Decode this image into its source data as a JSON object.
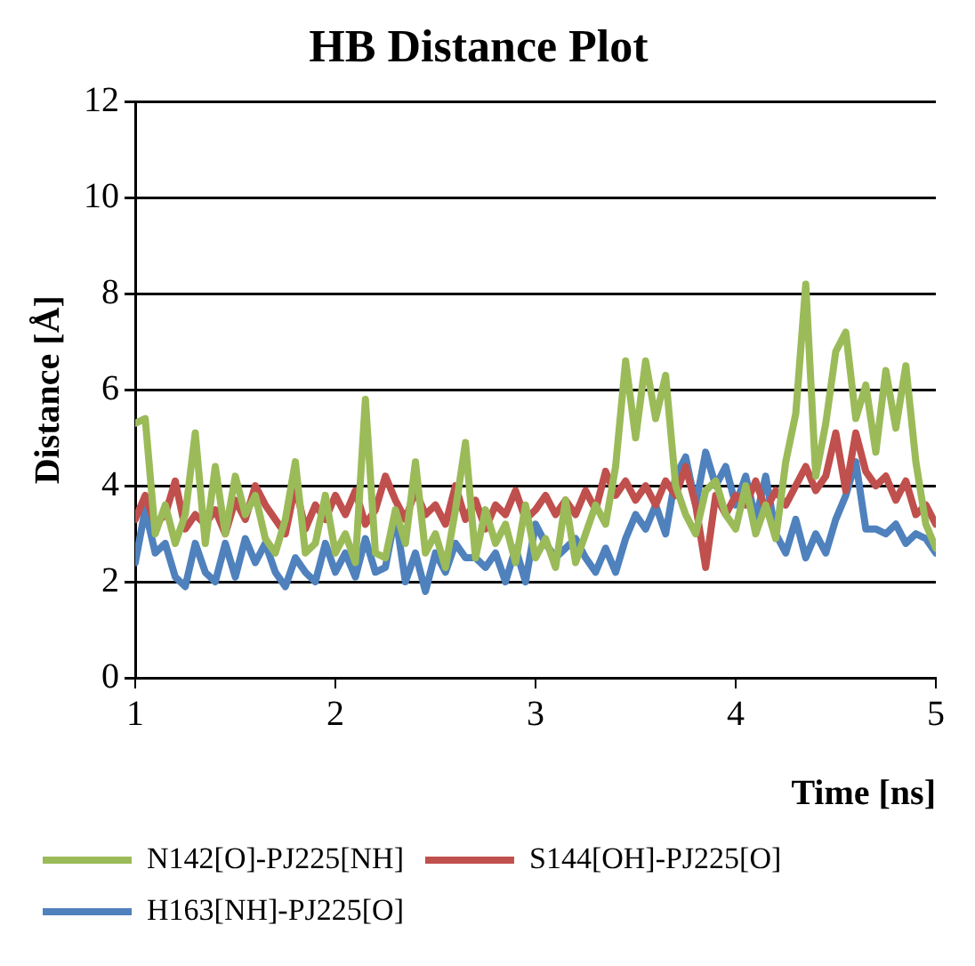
{
  "chart_data": {
    "type": "line",
    "title": "HB Distance Plot",
    "xlabel": "Time [ns]",
    "ylabel": "Distance [Å]",
    "x": [
      1.0,
      1.05,
      1.1,
      1.15,
      1.2,
      1.25,
      1.3,
      1.35,
      1.4,
      1.45,
      1.5,
      1.55,
      1.6,
      1.65,
      1.7,
      1.75,
      1.8,
      1.85,
      1.9,
      1.95,
      2.0,
      2.05,
      2.1,
      2.15,
      2.2,
      2.25,
      2.3,
      2.35,
      2.4,
      2.45,
      2.5,
      2.55,
      2.6,
      2.65,
      2.7,
      2.75,
      2.8,
      2.85,
      2.9,
      2.95,
      3.0,
      3.05,
      3.1,
      3.15,
      3.2,
      3.25,
      3.3,
      3.35,
      3.4,
      3.45,
      3.5,
      3.55,
      3.6,
      3.65,
      3.7,
      3.75,
      3.8,
      3.85,
      3.9,
      3.95,
      4.0,
      4.05,
      4.1,
      4.15,
      4.2,
      4.25,
      4.3,
      4.35,
      4.4,
      4.45,
      4.5,
      4.55,
      4.6,
      4.65,
      4.7,
      4.75,
      4.8,
      4.85,
      4.9,
      4.95,
      5.0
    ],
    "series": [
      {
        "name": "N142[O]-PJ225[NH]",
        "color": "#9bbb59",
        "values": [
          5.3,
          5.4,
          3.0,
          3.6,
          2.8,
          3.4,
          5.1,
          2.8,
          4.4,
          3.0,
          4.2,
          3.4,
          3.8,
          2.9,
          2.6,
          3.3,
          4.5,
          2.6,
          2.8,
          3.8,
          2.6,
          3.0,
          2.4,
          5.8,
          2.6,
          2.5,
          3.5,
          2.8,
          4.5,
          2.6,
          3.0,
          2.3,
          3.5,
          4.9,
          2.5,
          3.5,
          2.8,
          3.2,
          2.4,
          3.6,
          2.5,
          2.9,
          2.3,
          3.7,
          2.4,
          3.0,
          3.6,
          3.2,
          4.4,
          6.6,
          5.0,
          6.6,
          5.4,
          6.3,
          4.0,
          3.4,
          3.0,
          3.9,
          4.1,
          3.4,
          3.1,
          4.0,
          3.0,
          3.6,
          2.9,
          4.5,
          5.5,
          8.2,
          4.2,
          5.3,
          6.8,
          7.2,
          5.4,
          6.1,
          4.7,
          6.4,
          5.2,
          6.5,
          4.5,
          3.2,
          2.7
        ]
      },
      {
        "name": "S144[OH]-PJ225[O]",
        "color": "#c0504d",
        "values": [
          3.3,
          3.8,
          3.2,
          3.4,
          4.1,
          3.1,
          3.4,
          3.2,
          3.5,
          3.0,
          3.7,
          3.3,
          4.0,
          3.6,
          3.3,
          3.0,
          4.0,
          3.1,
          3.6,
          3.3,
          3.8,
          3.4,
          3.9,
          3.2,
          3.5,
          4.2,
          3.7,
          3.3,
          3.9,
          3.4,
          3.6,
          3.2,
          4.0,
          3.3,
          3.7,
          3.1,
          3.6,
          3.4,
          3.9,
          3.3,
          3.5,
          3.8,
          3.4,
          3.7,
          3.4,
          3.9,
          3.5,
          4.3,
          3.8,
          4.1,
          3.7,
          4.0,
          3.6,
          4.1,
          3.8,
          4.4,
          3.6,
          2.3,
          3.8,
          3.4,
          3.8,
          3.6,
          4.1,
          3.5,
          3.9,
          3.6,
          4.0,
          4.4,
          3.9,
          4.2,
          5.1,
          3.9,
          5.1,
          4.3,
          4.0,
          4.2,
          3.7,
          4.1,
          3.4,
          3.6,
          3.2
        ]
      },
      {
        "name": "H163[NH]-PJ225[O]",
        "color": "#4f81bd",
        "values": [
          2.4,
          3.5,
          2.6,
          2.8,
          2.1,
          1.9,
          2.8,
          2.2,
          2.0,
          2.8,
          2.1,
          2.9,
          2.4,
          2.8,
          2.2,
          1.9,
          2.5,
          2.2,
          2.0,
          2.8,
          2.2,
          2.6,
          2.1,
          2.9,
          2.2,
          2.3,
          3.4,
          2.0,
          2.6,
          1.8,
          2.6,
          2.2,
          2.8,
          2.5,
          2.5,
          2.3,
          2.6,
          2.0,
          2.7,
          2.0,
          3.2,
          2.8,
          2.5,
          2.7,
          2.9,
          2.5,
          2.2,
          2.7,
          2.2,
          2.9,
          3.4,
          3.1,
          3.6,
          3.0,
          4.2,
          4.6,
          3.6,
          4.7,
          4.0,
          4.4,
          3.6,
          4.2,
          3.3,
          4.2,
          3.0,
          2.6,
          3.3,
          2.5,
          3.0,
          2.6,
          3.3,
          3.8,
          4.5,
          3.1,
          3.1,
          3.0,
          3.2,
          2.8,
          3.0,
          2.9,
          2.6
        ]
      }
    ],
    "xlim": [
      1,
      5
    ],
    "xticks": [
      1,
      2,
      3,
      4,
      5
    ],
    "ylim": [
      0,
      12
    ],
    "yticks": [
      0,
      2,
      4,
      6,
      8,
      10,
      12
    ],
    "grid": "y",
    "legend": "bottom",
    "marker": "none",
    "line_style": "solid"
  }
}
